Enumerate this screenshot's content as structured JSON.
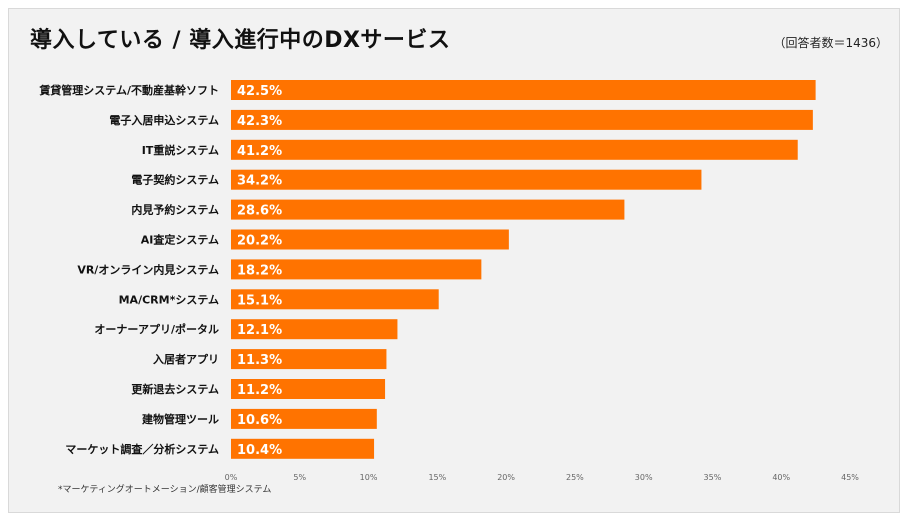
{
  "header": {
    "title": "導入している / 導入進行中のDXサービス",
    "count": "（回答者数＝1436）"
  },
  "footnote": "*マーケティングオートメーション/顧客管理システム",
  "colors": {
    "bar": "#ff7300",
    "label": "#ffffff",
    "text": "#111111",
    "tick": "#666666"
  },
  "chart_data": {
    "type": "bar",
    "orientation": "horizontal",
    "title": "導入している / 導入進行中のDXサービス",
    "categories": [
      "賃貸管理システム/不動産基幹ソフト",
      "電子入居申込システム",
      "IT重説システム",
      "電子契約システム",
      "内見予約システム",
      "AI査定システム",
      "VR/オンライン内見システム",
      "MA/CRM*システム",
      "オーナーアプリ/ポータル",
      "入居者アプリ",
      "更新退去システム",
      "建物管理ツール",
      "マーケット調査／分析システム"
    ],
    "values": [
      42.5,
      42.3,
      41.2,
      34.2,
      28.6,
      20.2,
      18.2,
      15.1,
      12.1,
      11.3,
      11.2,
      10.6,
      10.4
    ],
    "value_labels": [
      "42.5%",
      "42.3%",
      "41.2%",
      "34.2%",
      "28.6%",
      "20.2%",
      "18.2%",
      "15.1%",
      "12.1%",
      "11.3%",
      "11.2%",
      "10.6%",
      "10.4%"
    ],
    "xlim": [
      0,
      45
    ],
    "xticks": [
      0,
      5,
      10,
      15,
      20,
      25,
      30,
      35,
      40,
      45
    ],
    "xtick_labels": [
      "0%",
      "5%",
      "10%",
      "15%",
      "20%",
      "25%",
      "30%",
      "35%",
      "40%",
      "45%"
    ],
    "xlabel": "",
    "ylabel": "",
    "grid": false
  }
}
